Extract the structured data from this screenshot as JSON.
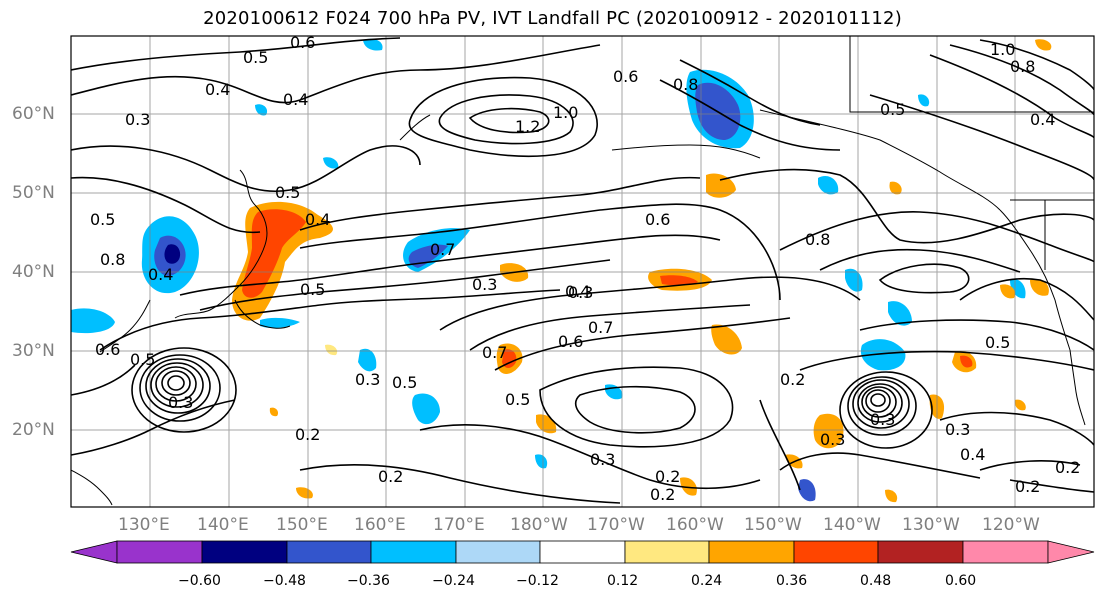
{
  "title": "2020100612 F024 700 hPa PV, IVT Landfall PC (2020100912 - 2020101112)",
  "lat_labels": [
    "60°N",
    "50°N",
    "40°N",
    "30°N",
    "20°N"
  ],
  "lon_labels": [
    "130°E",
    "140°E",
    "150°E",
    "160°E",
    "170°E",
    "180°W",
    "170°W",
    "160°W",
    "150°W",
    "140°W",
    "130°W",
    "120°W"
  ],
  "contour_labels": [
    "0.5",
    "0.6",
    "0.4",
    "0.3",
    "1.0",
    "0.6",
    "0.8",
    "0.4",
    "1.2",
    "0.5",
    "0.5",
    "0.4",
    "0.5",
    "0.4",
    "0.7",
    "0.3",
    "0.6",
    "0.8",
    "0.5",
    "0.4",
    "0.3",
    "0.8",
    "0.6",
    "0.5",
    "0.3",
    "0.4",
    "0.7",
    "0.6",
    "0.7",
    "0.5",
    "0.2",
    "0.3",
    "0.5",
    "0.2",
    "0.3",
    "0.3",
    "0.2",
    "0.2",
    "0.3",
    "0.2",
    "0.4",
    "0.2",
    "0.3",
    "0.5",
    "0.2",
    "1.0",
    "0.8"
  ],
  "colorbar": {
    "ticks": [
      "−0.60",
      "−0.48",
      "−0.36",
      "−0.24",
      "−0.12",
      "0.12",
      "0.24",
      "0.36",
      "0.48",
      "0.60"
    ],
    "colors": [
      "#9933cc",
      "#000080",
      "#3355cc",
      "#00bfff",
      "#add8f7",
      "#ffffff",
      "#ffe880",
      "#ffa500",
      "#ff4500",
      "#b22222",
      "#ff88aa"
    ]
  },
  "colors": {
    "contour": "#000000",
    "gridline": "#808080",
    "coastline": "#000000",
    "axis_label": "#7f7f7f"
  }
}
